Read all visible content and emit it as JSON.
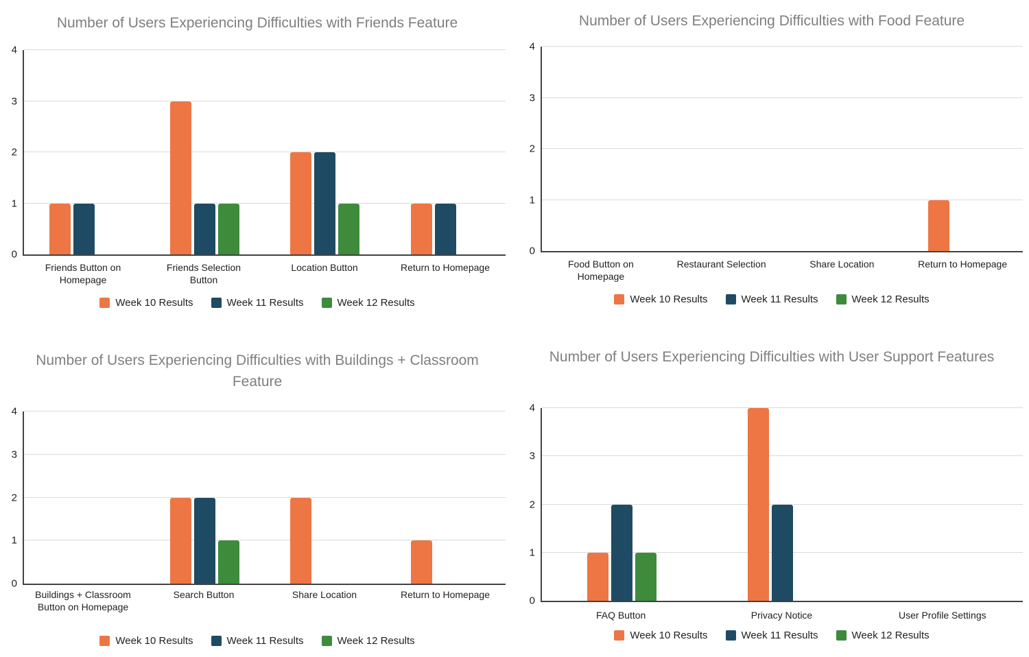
{
  "palette": {
    "week10": "#ED7644",
    "week11": "#1F4A63",
    "week12": "#3E8B3C",
    "title_text": "#7F7F7F",
    "axis_text": "#212121",
    "gridline": "#DADADA",
    "axis_line": "#424242"
  },
  "chart_data": [
    {
      "type": "bar",
      "title": "Number of Users Experiencing Difficulties with Friends Feature",
      "categories": [
        "Friends Button on Homepage",
        "Friends Selection Button",
        "Location Button",
        "Return to Homepage"
      ],
      "series": [
        {
          "name": "Week 10 Results",
          "color": "#ED7644",
          "values": [
            1,
            3,
            2,
            1
          ]
        },
        {
          "name": "Week 11 Results",
          "color": "#1F4A63",
          "values": [
            1,
            1,
            2,
            1
          ]
        },
        {
          "name": "Week 12 Results",
          "color": "#3E8B3C",
          "values": [
            0,
            1,
            1,
            0
          ]
        }
      ],
      "xlabel": "",
      "ylabel": "",
      "ylim": [
        0,
        4
      ],
      "yticks": [
        0,
        1,
        2,
        3,
        4
      ],
      "grid": true,
      "legend_position": "bottom"
    },
    {
      "type": "bar",
      "title": "Number of Users Experiencing Difficulties with Food Feature",
      "categories": [
        "Food Button on Homepage",
        "Restaurant Selection",
        "Share Location",
        "Return to Homepage"
      ],
      "series": [
        {
          "name": "Week 10 Results",
          "color": "#ED7644",
          "values": [
            0,
            0,
            0,
            1
          ]
        },
        {
          "name": "Week 11 Results",
          "color": "#1F4A63",
          "values": [
            0,
            0,
            0,
            0
          ]
        },
        {
          "name": "Week 12 Results",
          "color": "#3E8B3C",
          "values": [
            0,
            0,
            0,
            0
          ]
        }
      ],
      "xlabel": "",
      "ylabel": "",
      "ylim": [
        0,
        4
      ],
      "yticks": [
        0,
        1,
        2,
        3,
        4
      ],
      "grid": true,
      "legend_position": "bottom"
    },
    {
      "type": "bar",
      "title": "Number of Users Experiencing Difficulties with Buildings + Classroom Feature",
      "categories": [
        "Buildings + Classroom Button on Homepage",
        "Search Button",
        "Share Location",
        "Return to Homepage"
      ],
      "series": [
        {
          "name": "Week 10 Results",
          "color": "#ED7644",
          "values": [
            0,
            2,
            2,
            1
          ]
        },
        {
          "name": "Week 11 Results",
          "color": "#1F4A63",
          "values": [
            0,
            2,
            0,
            0
          ]
        },
        {
          "name": "Week 12 Results",
          "color": "#3E8B3C",
          "values": [
            0,
            1,
            0,
            0
          ]
        }
      ],
      "xlabel": "",
      "ylabel": "",
      "ylim": [
        0,
        4
      ],
      "yticks": [
        0,
        1,
        2,
        3,
        4
      ],
      "grid": true,
      "legend_position": "bottom"
    },
    {
      "type": "bar",
      "title": "Number of Users Experiencing Difficulties with User Support Features",
      "categories": [
        "FAQ Button",
        "Privacy Notice",
        "User Profile Settings"
      ],
      "series": [
        {
          "name": "Week 10 Results",
          "color": "#ED7644",
          "values": [
            1,
            4,
            0
          ]
        },
        {
          "name": "Week 11 Results",
          "color": "#1F4A63",
          "values": [
            2,
            2,
            0
          ]
        },
        {
          "name": "Week 12 Results",
          "color": "#3E8B3C",
          "values": [
            1,
            0,
            0
          ]
        }
      ],
      "xlabel": "",
      "ylabel": "",
      "ylim": [
        0,
        4
      ],
      "yticks": [
        0,
        1,
        2,
        3,
        4
      ],
      "grid": true,
      "legend_position": "bottom"
    }
  ]
}
